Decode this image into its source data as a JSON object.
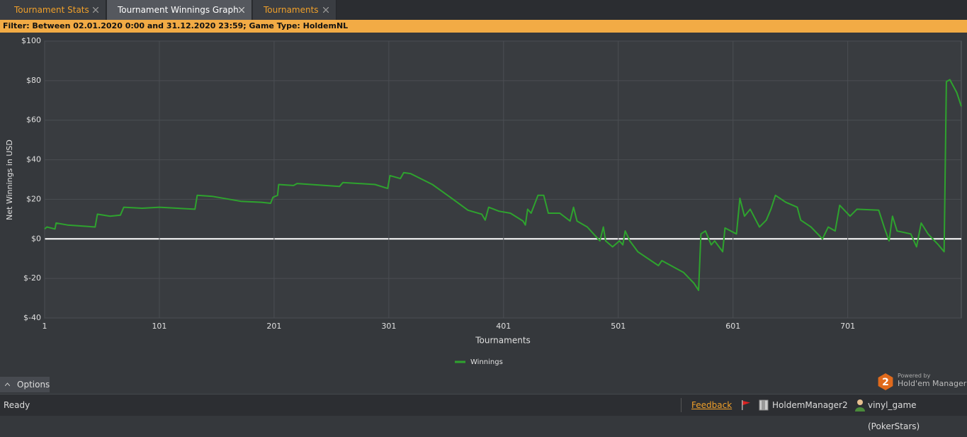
{
  "tabs": [
    "Tournament Stats",
    "Tournament Winnings Graph",
    "Tournaments"
  ],
  "active_tab": 1,
  "filter": "Filter: Between 02.01.2020 0:00 and 31.12.2020 23:59; Game Type: HoldemNL",
  "chart_data": {
    "type": "line",
    "ylabel": "Net Winnings in USD",
    "xlabel": "Tournaments",
    "xlim": [
      1,
      800
    ],
    "xticks": [
      1,
      101,
      201,
      301,
      401,
      501,
      601,
      701
    ],
    "ylim": [
      -40,
      100
    ],
    "yticks": [
      {
        "value": -40,
        "label": "$-40"
      },
      {
        "value": -20,
        "label": "$-20"
      },
      {
        "value": 0,
        "label": "$0"
      },
      {
        "value": 20,
        "label": "$20"
      },
      {
        "value": 40,
        "label": "$40"
      },
      {
        "value": 60,
        "label": "$60"
      },
      {
        "value": 80,
        "label": "$80"
      },
      {
        "value": 100,
        "label": "$100"
      }
    ],
    "grid": true,
    "baseline_color": "#ffffff",
    "legend": "bottom",
    "series": [
      {
        "name": "Winnings",
        "color": "#2ea32e",
        "x": [
          1,
          3,
          10,
          11,
          21,
          45,
          47,
          58,
          67,
          70,
          86,
          101,
          132,
          134,
          147,
          172,
          190,
          198,
          200,
          204,
          205,
          218,
          221,
          258,
          261,
          289,
          300,
          302,
          311,
          314,
          320,
          339,
          357,
          370,
          382,
          385,
          388,
          397,
          407,
          418,
          420,
          422,
          425,
          431,
          436,
          440,
          450,
          459,
          462,
          465,
          474,
          485,
          488,
          490,
          496,
          502,
          505,
          507,
          511,
          518,
          536,
          539,
          558,
          567,
          571,
          573,
          577,
          582,
          585,
          592,
          594,
          604,
          607,
          611,
          616,
          624,
          630,
          634,
          638,
          647,
          657,
          660,
          669,
          679,
          684,
          690,
          694,
          703,
          709,
          728,
          733,
          737,
          740,
          744,
          756,
          761,
          765,
          771,
          780,
          785,
          787,
          790,
          796,
          800
        ],
        "values": [
          5,
          6,
          5,
          8,
          7,
          6,
          12.5,
          11.5,
          12,
          16,
          15.5,
          16,
          15,
          22,
          21.5,
          19,
          18.5,
          18,
          21,
          22,
          27.5,
          27,
          28,
          26.5,
          28.5,
          27.5,
          25.5,
          32,
          30.5,
          33.5,
          33,
          27.5,
          20,
          14.5,
          12.5,
          9.5,
          16,
          14,
          13,
          9,
          7,
          15,
          13,
          22,
          22,
          13,
          13,
          9,
          16,
          9,
          6,
          -1,
          6,
          -1,
          -4,
          -1,
          -3,
          4,
          -1,
          -6.5,
          -13.5,
          -11,
          -17,
          -22.5,
          -26,
          2.5,
          4,
          -3,
          -1,
          -6.5,
          5.5,
          2.5,
          20.5,
          11.5,
          15,
          6,
          9.5,
          15,
          22,
          18.5,
          16,
          9.5,
          6,
          0,
          6,
          4,
          17,
          11.5,
          15,
          14.5,
          5.5,
          -1,
          11.5,
          4,
          2.5,
          -4,
          8,
          2.5,
          -3,
          -6.5,
          79.5,
          80.5,
          74,
          67
        ]
      }
    ]
  },
  "options": "Options",
  "branding": {
    "logo": "2",
    "powered_by": "Powered by",
    "product": "Hold'em Manager"
  },
  "status": {
    "state": "Ready",
    "feedback": "Feedback",
    "app": "HoldemManager2",
    "user": "vinyl_game (PokerStars)"
  }
}
